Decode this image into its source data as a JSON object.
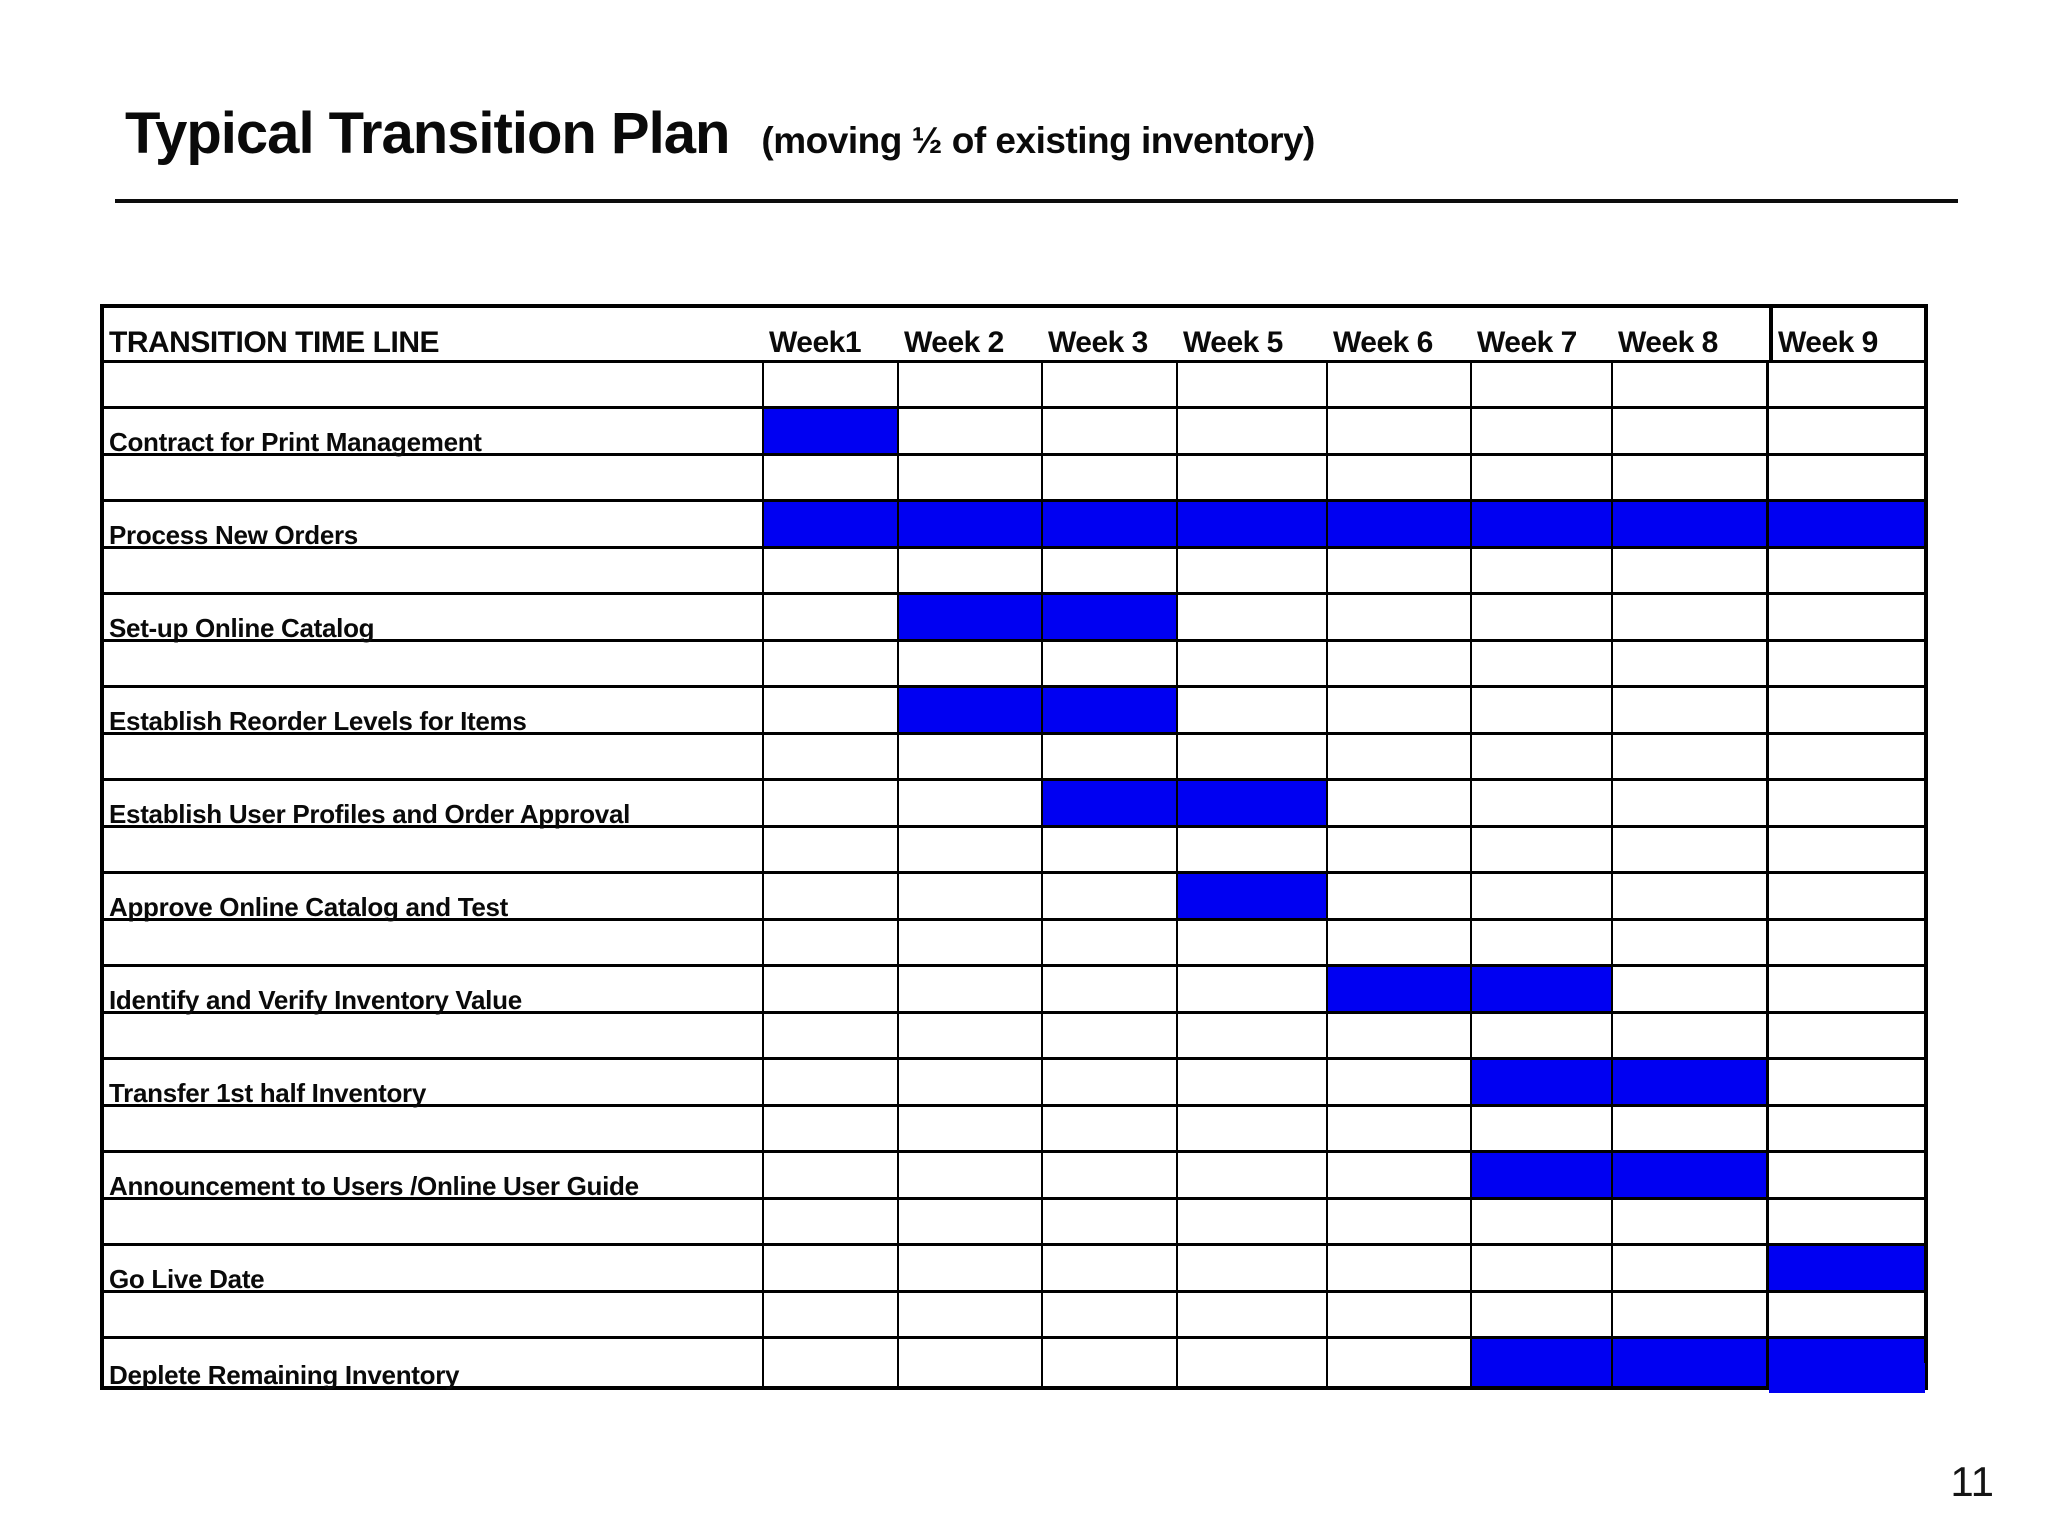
{
  "slide": {
    "title": "Typical Transition Plan",
    "subtitle": "(moving ½ of existing inventory)",
    "page_number": "11"
  },
  "colors": {
    "bar": "#0000f2",
    "grid": "#000000",
    "text": "#0a0a0a"
  },
  "chart_data": {
    "type": "bar",
    "subtype": "gantt",
    "title": "TRANSITION TIME LINE",
    "columns": [
      "Week1",
      "Week 2",
      "Week 3",
      "Week 5",
      "Week 6",
      "Week 7",
      "Week 8",
      "Week 9"
    ],
    "legend": "none",
    "grid": true,
    "tasks": [
      {
        "name": "Contract for Print Management",
        "start": 0,
        "span": 1,
        "weeks": [
          "Week1"
        ]
      },
      {
        "name": "Process New Orders",
        "start": 0,
        "span": 8,
        "weeks": [
          "Week1",
          "Week 2",
          "Week 3",
          "Week 5",
          "Week 6",
          "Week 7",
          "Week 8",
          "Week 9"
        ]
      },
      {
        "name": "Set-up Online Catalog",
        "start": 1,
        "span": 2,
        "weeks": [
          "Week 2",
          "Week 3"
        ]
      },
      {
        "name": "Establish Reorder Levels for Items",
        "start": 1,
        "span": 2,
        "weeks": [
          "Week 2",
          "Week 3"
        ]
      },
      {
        "name": "Establish User Profiles and Order Approval",
        "start": 2,
        "span": 2,
        "weeks": [
          "Week 3",
          "Week 5"
        ]
      },
      {
        "name": "Approve Online Catalog and Test",
        "start": 3,
        "span": 1,
        "weeks": [
          "Week 5"
        ]
      },
      {
        "name": "Identify and Verify Inventory Value",
        "start": 4,
        "span": 2,
        "weeks": [
          "Week 6",
          "Week 7"
        ]
      },
      {
        "name": "Transfer 1st half Inventory",
        "start": 5,
        "span": 2,
        "weeks": [
          "Week 7",
          "Week 8"
        ]
      },
      {
        "name": "Announcement to Users /Online User Guide",
        "start": 5,
        "span": 2,
        "weeks": [
          "Week 7",
          "Week 8"
        ]
      },
      {
        "name": "Go Live Date",
        "start": 7,
        "span": 1,
        "weeks": [
          "Week 9"
        ]
      },
      {
        "name": "Deplete Remaining Inventory",
        "start": 5,
        "span": 3,
        "weeks": [
          "Week 7",
          "Week 8",
          "Week 9"
        ]
      }
    ]
  }
}
